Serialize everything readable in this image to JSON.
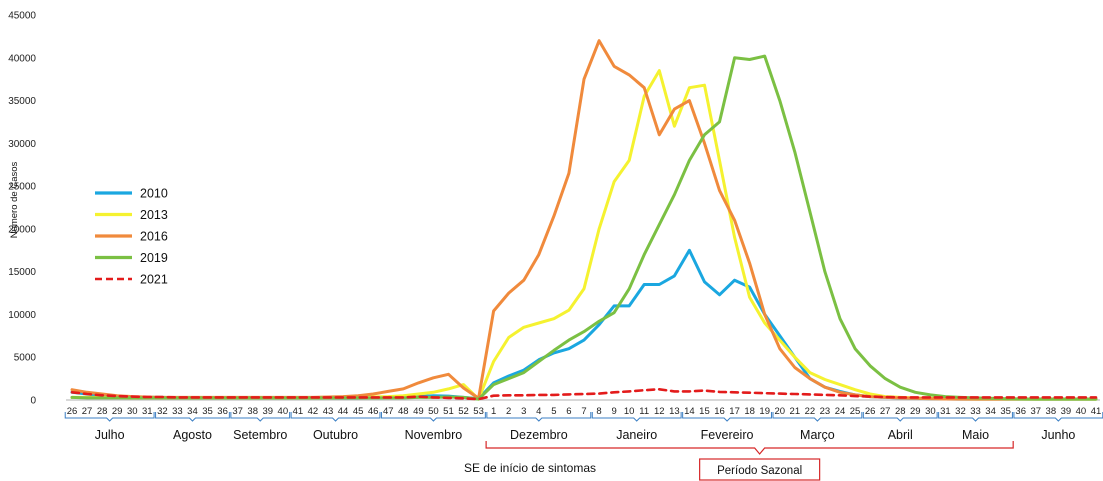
{
  "chart_data": {
    "type": "line",
    "ylabel": "Número de Casos",
    "xlabel": "SE de início de sintomas",
    "ylim": [
      0,
      45000
    ],
    "yticks": [
      0,
      5000,
      10000,
      15000,
      20000,
      25000,
      30000,
      35000,
      40000,
      45000
    ],
    "x_weeks": [
      26,
      27,
      28,
      29,
      30,
      31,
      32,
      33,
      34,
      35,
      36,
      37,
      38,
      39,
      40,
      41,
      42,
      43,
      44,
      45,
      46,
      47,
      48,
      49,
      50,
      51,
      52,
      53,
      1,
      2,
      3,
      4,
      5,
      6,
      7,
      8,
      9,
      10,
      11,
      12,
      13,
      14,
      15,
      16,
      17,
      18,
      19,
      20,
      21,
      22,
      23,
      24,
      25,
      26,
      27,
      28,
      29,
      30,
      31,
      32,
      33,
      34,
      35,
      36,
      37,
      38,
      39,
      40,
      41
    ],
    "x_tick_labels": [
      "26",
      "27",
      "28",
      "29",
      "30",
      "31",
      "32",
      "33",
      "34",
      "35",
      "36",
      "37",
      "38",
      "39",
      "40",
      "41",
      "42",
      "43",
      "44",
      "45",
      "46",
      "47",
      "48",
      "49",
      "50",
      "51",
      "52",
      "53",
      "1",
      "2",
      "3",
      "4",
      "5",
      "6",
      "7",
      "8",
      "9",
      "10",
      "11",
      "12",
      "13",
      "14",
      "15",
      "16",
      "17",
      "18",
      "19",
      "20",
      "21",
      "22",
      "23",
      "24",
      "25",
      "26",
      "27",
      "28",
      "29",
      "30",
      "31",
      "32",
      "33",
      "34",
      "35",
      "36",
      "37",
      "38",
      "39",
      "40",
      "41"
    ],
    "months": [
      {
        "label": "Julho",
        "from": 0,
        "to": 5
      },
      {
        "label": "Agosto",
        "from": 6,
        "to": 10
      },
      {
        "label": "Setembro",
        "from": 11,
        "to": 14
      },
      {
        "label": "Outubro",
        "from": 15,
        "to": 20
      },
      {
        "label": "Novembro",
        "from": 21,
        "to": 27
      },
      {
        "label": "Dezembro",
        "from": 28,
        "to": 34
      },
      {
        "label": "Janeiro",
        "from": 35,
        "to": 40
      },
      {
        "label": "Fevereiro",
        "from": 41,
        "to": 46
      },
      {
        "label": "Março",
        "from": 47,
        "to": 52
      },
      {
        "label": "Abril",
        "from": 53,
        "to": 57
      },
      {
        "label": "Maio",
        "from": 58,
        "to": 62
      },
      {
        "label": "Junho",
        "from": 63,
        "to": 68
      }
    ],
    "legend_position": "left",
    "annotation": {
      "label": "Período Sazonal",
      "from": 28,
      "to": 62
    },
    "series": [
      {
        "name": "2010",
        "color": "#1aa7e0",
        "dashed": false,
        "values": [
          900,
          700,
          500,
          400,
          300,
          300,
          300,
          250,
          250,
          250,
          250,
          250,
          250,
          250,
          250,
          250,
          250,
          250,
          250,
          250,
          300,
          300,
          300,
          400,
          500,
          450,
          300,
          150,
          2000,
          2800,
          3500,
          4700,
          5500,
          6000,
          7000,
          8800,
          11000,
          11000,
          13500,
          13500,
          14500,
          17500,
          13800,
          12300,
          14000,
          13200,
          10000,
          7500,
          5000,
          2500,
          1500,
          1000,
          600,
          400,
          300,
          250,
          200,
          150,
          120,
          100,
          100,
          100,
          100,
          100,
          100,
          100,
          100,
          100,
          100
        ]
      },
      {
        "name": "2013",
        "color": "#f5f230",
        "dashed": false,
        "values": [
          300,
          300,
          300,
          300,
          250,
          250,
          250,
          250,
          250,
          250,
          250,
          250,
          250,
          250,
          250,
          250,
          250,
          250,
          300,
          300,
          350,
          400,
          500,
          700,
          900,
          1300,
          1800,
          100,
          4500,
          7300,
          8500,
          9000,
          9500,
          10500,
          13000,
          20000,
          25500,
          28000,
          35500,
          38500,
          32000,
          36500,
          36800,
          28000,
          19000,
          12000,
          9000,
          7000,
          5000,
          3200,
          2400,
          1800,
          1200,
          700,
          400,
          300,
          250,
          200,
          150,
          120,
          100,
          100,
          100,
          100,
          100,
          100,
          100,
          100,
          100
        ]
      },
      {
        "name": "2016",
        "color": "#f08a3c",
        "dashed": false,
        "values": [
          1200,
          900,
          700,
          500,
          400,
          350,
          300,
          300,
          300,
          300,
          300,
          300,
          300,
          300,
          300,
          300,
          300,
          350,
          400,
          500,
          700,
          1000,
          1300,
          2000,
          2600,
          3000,
          1400,
          200,
          10400,
          12500,
          14000,
          17000,
          21500,
          26500,
          37500,
          42000,
          39000,
          38000,
          36500,
          31000,
          34000,
          35000,
          30000,
          24500,
          21000,
          16000,
          10000,
          6000,
          3800,
          2500,
          1500,
          900,
          600,
          400,
          300,
          250,
          200,
          150,
          120,
          100,
          100,
          100,
          100,
          100,
          100,
          100,
          100,
          100,
          100
        ]
      },
      {
        "name": "2019",
        "color": "#7bc043",
        "dashed": false,
        "values": [
          300,
          250,
          250,
          250,
          250,
          250,
          250,
          250,
          250,
          250,
          250,
          250,
          250,
          250,
          250,
          250,
          250,
          250,
          250,
          250,
          250,
          250,
          250,
          300,
          300,
          350,
          300,
          100,
          1800,
          2500,
          3200,
          4500,
          5800,
          7000,
          8000,
          9200,
          10200,
          13000,
          17000,
          20500,
          24000,
          28000,
          31000,
          32500,
          40000,
          39800,
          40200,
          35000,
          29000,
          22000,
          15000,
          9500,
          6000,
          4000,
          2500,
          1500,
          900,
          600,
          400,
          300,
          250,
          200,
          150,
          120,
          100,
          100,
          100,
          100,
          100
        ]
      },
      {
        "name": "2021",
        "color": "#e31b1b",
        "dashed": true,
        "values": [
          900,
          700,
          550,
          450,
          400,
          350,
          350,
          300,
          300,
          300,
          300,
          300,
          300,
          300,
          300,
          300,
          300,
          300,
          300,
          300,
          300,
          300,
          300,
          400,
          300,
          250,
          200,
          100,
          500,
          550,
          550,
          600,
          600,
          650,
          700,
          750,
          900,
          1000,
          1150,
          1250,
          1000,
          1000,
          1100,
          950,
          900,
          850,
          800,
          750,
          700,
          650,
          600,
          550,
          450,
          400,
          350,
          300,
          300,
          300,
          300,
          300,
          300,
          300,
          300,
          300,
          300,
          300,
          300,
          300,
          300
        ]
      }
    ]
  }
}
